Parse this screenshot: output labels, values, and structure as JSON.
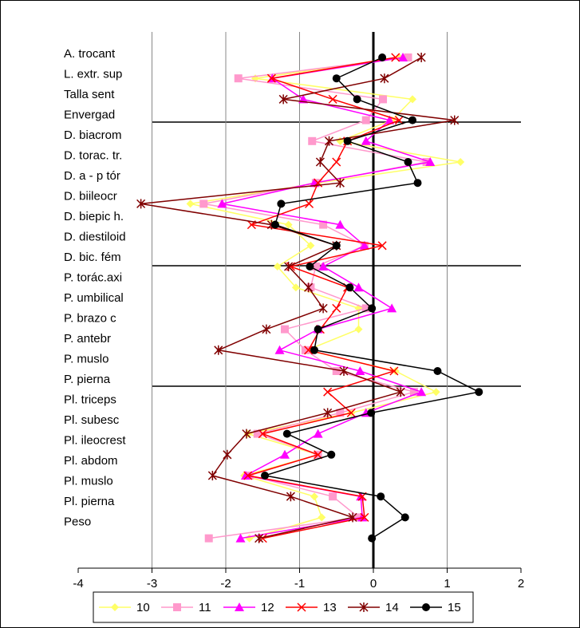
{
  "chart_data": {
    "type": "line",
    "orientation": "horizontal",
    "categories": [
      "A. trocant",
      "L. extr. sup",
      "Talla sent",
      "Envergad",
      "D. biacrom",
      "D. torac. tr.",
      "D. a - p tór",
      "D. biileocr",
      "D. biepic h.",
      "D. diestiloid",
      "D. bic. fém",
      "P. torác.axi",
      "P. umbilical",
      "P. brazo c",
      "P. antebr",
      "P. muslo",
      "P. pierna",
      "Pl. triceps",
      "Pl. subesc",
      "Pl. ileocrest",
      "Pl. abdom",
      "Pl. muslo",
      "Pl. pierna",
      "Peso"
    ],
    "xlim": [
      -4,
      2
    ],
    "xticks": [
      -4,
      -3,
      -2,
      -1,
      0,
      1,
      2
    ],
    "grid": true,
    "legend": "bottom",
    "series": [
      {
        "name": "10",
        "color": "#ffff66",
        "marker": "diamond",
        "values": [
          0.35,
          -1.6,
          0.53,
          0.25,
          -0.45,
          1.18,
          -0.75,
          -2.48,
          -1.15,
          -0.85,
          -1.3,
          -1.05,
          -0.2,
          -0.2,
          -0.9,
          0.3,
          0.85,
          -0.3,
          -1.7,
          -0.75,
          -1.75,
          -0.8,
          -0.7,
          -1.68
        ]
      },
      {
        "name": "11",
        "color": "#ff99cc",
        "marker": "square",
        "values": [
          0.47,
          -1.83,
          0.13,
          -0.1,
          -0.83,
          0.72,
          -0.78,
          -2.3,
          -0.68,
          -0.12,
          -0.78,
          -0.85,
          -0.1,
          -1.2,
          -0.92,
          -0.5,
          0.55,
          -0.45,
          -1.57,
          -0.75,
          -1.68,
          -0.55,
          -0.2,
          -2.23
        ]
      },
      {
        "name": "12",
        "color": "#ff00ff",
        "marker": "triangle",
        "values": [
          0.4,
          -1.37,
          -0.95,
          0.22,
          -0.1,
          0.77,
          -0.8,
          -2.05,
          -0.45,
          -0.12,
          -0.68,
          -0.2,
          0.25,
          -0.75,
          -1.27,
          -0.18,
          0.65,
          -0.1,
          -0.75,
          -1.2,
          -1.73,
          -0.17,
          -0.15,
          -1.8
        ]
      },
      {
        "name": "13",
        "color": "#ff0000",
        "marker": "x",
        "values": [
          0.3,
          -1.38,
          -0.55,
          0.35,
          -0.35,
          -0.5,
          -0.75,
          -0.87,
          -1.65,
          0.12,
          -1.12,
          -0.35,
          -0.5,
          -0.72,
          -0.88,
          0.28,
          -0.62,
          -0.3,
          -1.5,
          -0.75,
          -1.7,
          -0.15,
          -0.12,
          -1.5
        ]
      },
      {
        "name": "14",
        "color": "#800000",
        "marker": "star",
        "values": [
          0.65,
          0.15,
          -1.22,
          1.1,
          -0.6,
          -0.72,
          -0.45,
          -3.15,
          -1.38,
          -0.5,
          -1.15,
          -0.88,
          -0.68,
          -1.45,
          -2.1,
          -0.4,
          0.37,
          -0.62,
          -1.72,
          -1.98,
          -2.18,
          -1.12,
          -0.28,
          -1.55
        ]
      },
      {
        "name": "15",
        "color": "#000000",
        "marker": "circle",
        "values": [
          0.12,
          -0.5,
          -0.22,
          0.53,
          -0.35,
          0.47,
          0.6,
          -1.25,
          -1.33,
          -0.5,
          -0.86,
          -0.32,
          -0.02,
          -0.75,
          -0.8,
          0.87,
          1.43,
          -0.03,
          -1.17,
          -0.57,
          -1.47,
          0.1,
          0.43,
          -0.02
        ]
      }
    ]
  }
}
